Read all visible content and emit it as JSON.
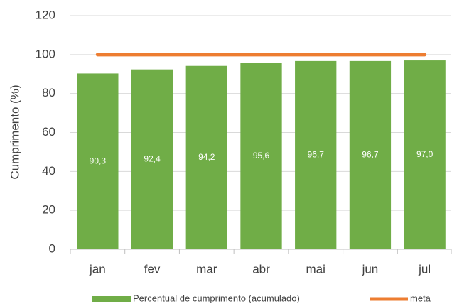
{
  "chart_data": {
    "type": "bar",
    "y_label": "Cumprimento (%)",
    "categories": [
      "jan",
      "fev",
      "mar",
      "abr",
      "mai",
      "jun",
      "jul"
    ],
    "series": [
      {
        "name": "Percentual de cumprimento (acumulado)",
        "type": "bar",
        "color": "#70ad47",
        "values": [
          90.3,
          92.4,
          94.2,
          95.6,
          96.7,
          96.7,
          97.0
        ],
        "value_labels": [
          "90,3",
          "92,4",
          "94,2",
          "95,6",
          "96,7",
          "96,7",
          "97,0"
        ]
      },
      {
        "name": "meta",
        "type": "line",
        "color": "#ed7d31",
        "values": [
          100,
          100,
          100,
          100,
          100,
          100,
          100
        ]
      }
    ],
    "ylim": [
      0,
      120
    ],
    "yticks": [
      0,
      20,
      40,
      60,
      80,
      100,
      120
    ],
    "grid": true
  }
}
